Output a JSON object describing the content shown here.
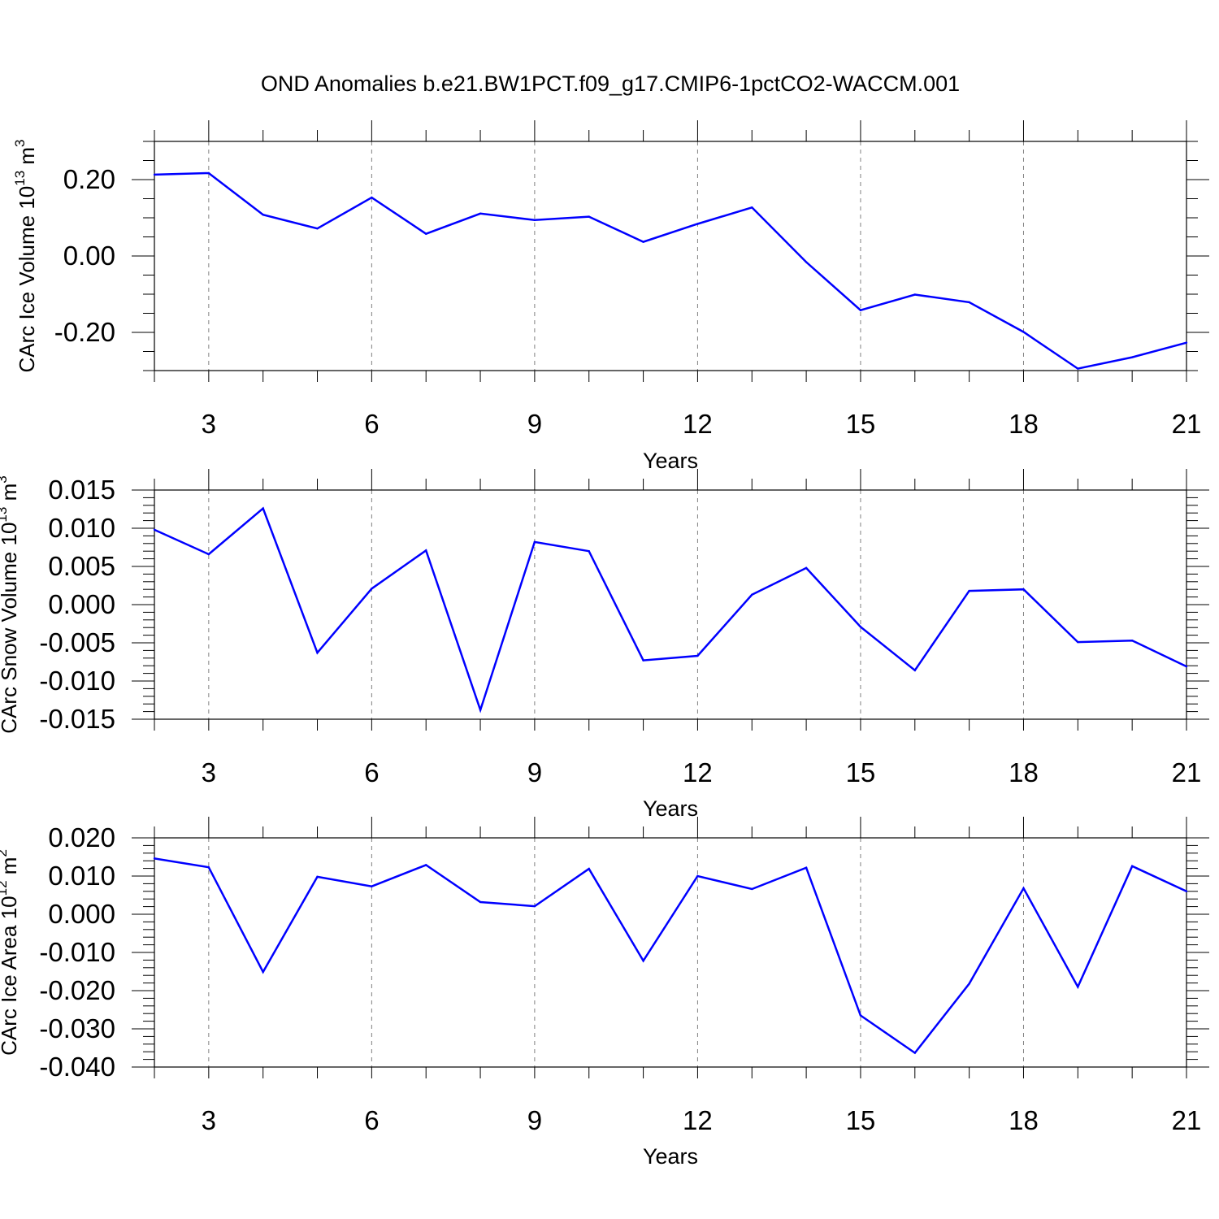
{
  "title": "OND Anomalies b.e21.BW1PCT.f09_g17.CMIP6-1pctCO2-WACCM.001",
  "colors": {
    "line": "#0000ff",
    "axis": "#000000",
    "grid": "#808080"
  },
  "chart_data": [
    {
      "type": "line",
      "ylabel": {
        "main": "CArc Ice Volume 10",
        "exponent": "13",
        "unit": "m",
        "unit_exponent": "3"
      },
      "xlabel": "Years",
      "xlim": [
        2,
        21
      ],
      "ylim": [
        -0.3,
        0.3
      ],
      "x_ticks": [
        3,
        6,
        9,
        12,
        15,
        18,
        21
      ],
      "y_ticks": [
        -0.2,
        0.0,
        0.2
      ],
      "y_tick_labels": [
        "-0.20",
        "0.00",
        "0.20"
      ],
      "y_minor_step": 0.05,
      "grid": "vertical dashed at major x ticks",
      "x": [
        2,
        3,
        4,
        5,
        6,
        7,
        8,
        9,
        10,
        11,
        12,
        13,
        14,
        15,
        16,
        17,
        18,
        19,
        20,
        21
      ],
      "series": [
        {
          "values": [
            0.213,
            0.217,
            0.108,
            0.072,
            0.153,
            0.058,
            0.111,
            0.094,
            0.103,
            0.037,
            0.084,
            0.127,
            -0.016,
            -0.142,
            -0.101,
            -0.121,
            -0.199,
            -0.295,
            -0.265,
            -0.227
          ]
        }
      ]
    },
    {
      "type": "line",
      "ylabel": {
        "main": "CArc Snow Volume 10",
        "exponent": "13",
        "unit": "m",
        "unit_exponent": "3"
      },
      "xlabel": "Years",
      "xlim": [
        2,
        21
      ],
      "ylim": [
        -0.015,
        0.015
      ],
      "x_ticks": [
        3,
        6,
        9,
        12,
        15,
        18,
        21
      ],
      "y_ticks": [
        -0.015,
        -0.01,
        -0.005,
        0.0,
        0.005,
        0.01,
        0.015
      ],
      "y_tick_labels": [
        "-0.015",
        "-0.010",
        "-0.005",
        "0.000",
        "0.005",
        "0.010",
        "0.015"
      ],
      "y_minor_step": 0.001,
      "grid": "vertical dashed at major x ticks",
      "x": [
        2,
        3,
        4,
        5,
        6,
        7,
        8,
        9,
        10,
        11,
        12,
        13,
        14,
        15,
        16,
        17,
        18,
        19,
        20,
        21
      ],
      "series": [
        {
          "values": [
            0.0098,
            0.0066,
            0.0126,
            -0.0063,
            0.0021,
            0.0071,
            -0.0138,
            0.0082,
            0.007,
            -0.0073,
            -0.0067,
            0.0013,
            0.0048,
            -0.0029,
            -0.0086,
            0.0018,
            0.002,
            -0.0049,
            -0.0047,
            -0.0081
          ]
        }
      ]
    },
    {
      "type": "line",
      "ylabel": {
        "main": "CArc Ice Area 10",
        "exponent": "12",
        "unit": "m",
        "unit_exponent": "2"
      },
      "xlabel": "Years",
      "xlim": [
        2,
        21
      ],
      "ylim": [
        -0.04,
        0.02
      ],
      "x_ticks": [
        3,
        6,
        9,
        12,
        15,
        18,
        21
      ],
      "y_ticks": [
        -0.04,
        -0.03,
        -0.02,
        -0.01,
        0.0,
        0.01,
        0.02
      ],
      "y_tick_labels": [
        "-0.040",
        "-0.030",
        "-0.020",
        "-0.010",
        "0.000",
        "0.010",
        "0.020"
      ],
      "y_minor_step": 0.002,
      "grid": "vertical dashed at major x ticks",
      "x": [
        2,
        3,
        4,
        5,
        6,
        7,
        8,
        9,
        10,
        11,
        12,
        13,
        14,
        15,
        16,
        17,
        18,
        19,
        20,
        21
      ],
      "series": [
        {
          "values": [
            0.0146,
            0.0123,
            -0.0151,
            0.0098,
            0.0073,
            0.0129,
            0.0032,
            0.0021,
            0.0119,
            -0.0122,
            0.01,
            0.0066,
            0.0122,
            -0.0265,
            -0.0363,
            -0.0182,
            0.0068,
            -0.019,
            0.0126,
            0.006
          ]
        }
      ]
    }
  ]
}
